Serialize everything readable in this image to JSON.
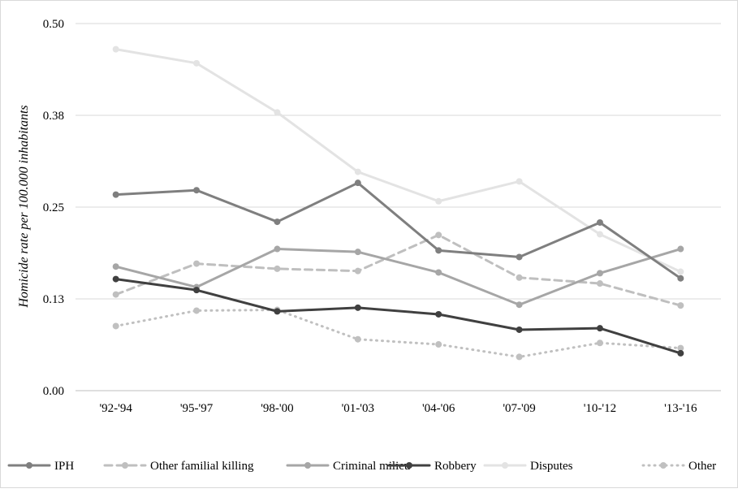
{
  "chart_data": {
    "type": "line",
    "title": "",
    "xlabel": "",
    "ylabel": "Homicide rate per 100.000 inhabitants",
    "categories": [
      "'92-'94",
      "'95-'97",
      "'98-'00",
      "'01-'03",
      "'04-'06",
      "'07-'09",
      "'10-'12",
      "'13-'16"
    ],
    "ylim": [
      0,
      0.5
    ],
    "yticks": [
      0.0,
      0.125,
      0.25,
      0.375,
      0.5
    ],
    "ytick_labels": [
      "0.00",
      "0.13",
      "0.25",
      "0.38",
      "0.50"
    ],
    "grid": "horizontal",
    "legend": "bottom",
    "series": [
      {
        "name": "IPH",
        "values": [
          0.267,
          0.273,
          0.23,
          0.283,
          0.191,
          0.182,
          0.229,
          0.153
        ],
        "color": "#7f7f7f",
        "dash": "solid",
        "marker": true
      },
      {
        "name": "Other familial killing",
        "values": [
          0.131,
          0.173,
          0.166,
          0.163,
          0.212,
          0.154,
          0.146,
          0.116
        ],
        "color": "#bfbfbf",
        "dash": "dashed",
        "marker": true
      },
      {
        "name": "Criminal milieu",
        "values": [
          0.169,
          0.141,
          0.193,
          0.189,
          0.161,
          0.117,
          0.16,
          0.193
        ],
        "color": "#a6a6a6",
        "dash": "solid",
        "marker": true
      },
      {
        "name": "Robbery",
        "values": [
          0.152,
          0.137,
          0.108,
          0.113,
          0.104,
          0.083,
          0.085,
          0.051
        ],
        "color": "#404040",
        "dash": "solid",
        "marker": true
      },
      {
        "name": "Disputes",
        "values": [
          0.465,
          0.446,
          0.379,
          0.298,
          0.258,
          0.285,
          0.213,
          0.162
        ],
        "color": "#e3e3e3",
        "dash": "solid",
        "marker": true
      },
      {
        "name": "Other",
        "values": [
          0.088,
          0.109,
          0.11,
          0.07,
          0.063,
          0.046,
          0.065,
          0.058
        ],
        "color": "#c0c0c0",
        "dash": "dotted",
        "marker": true
      }
    ]
  }
}
